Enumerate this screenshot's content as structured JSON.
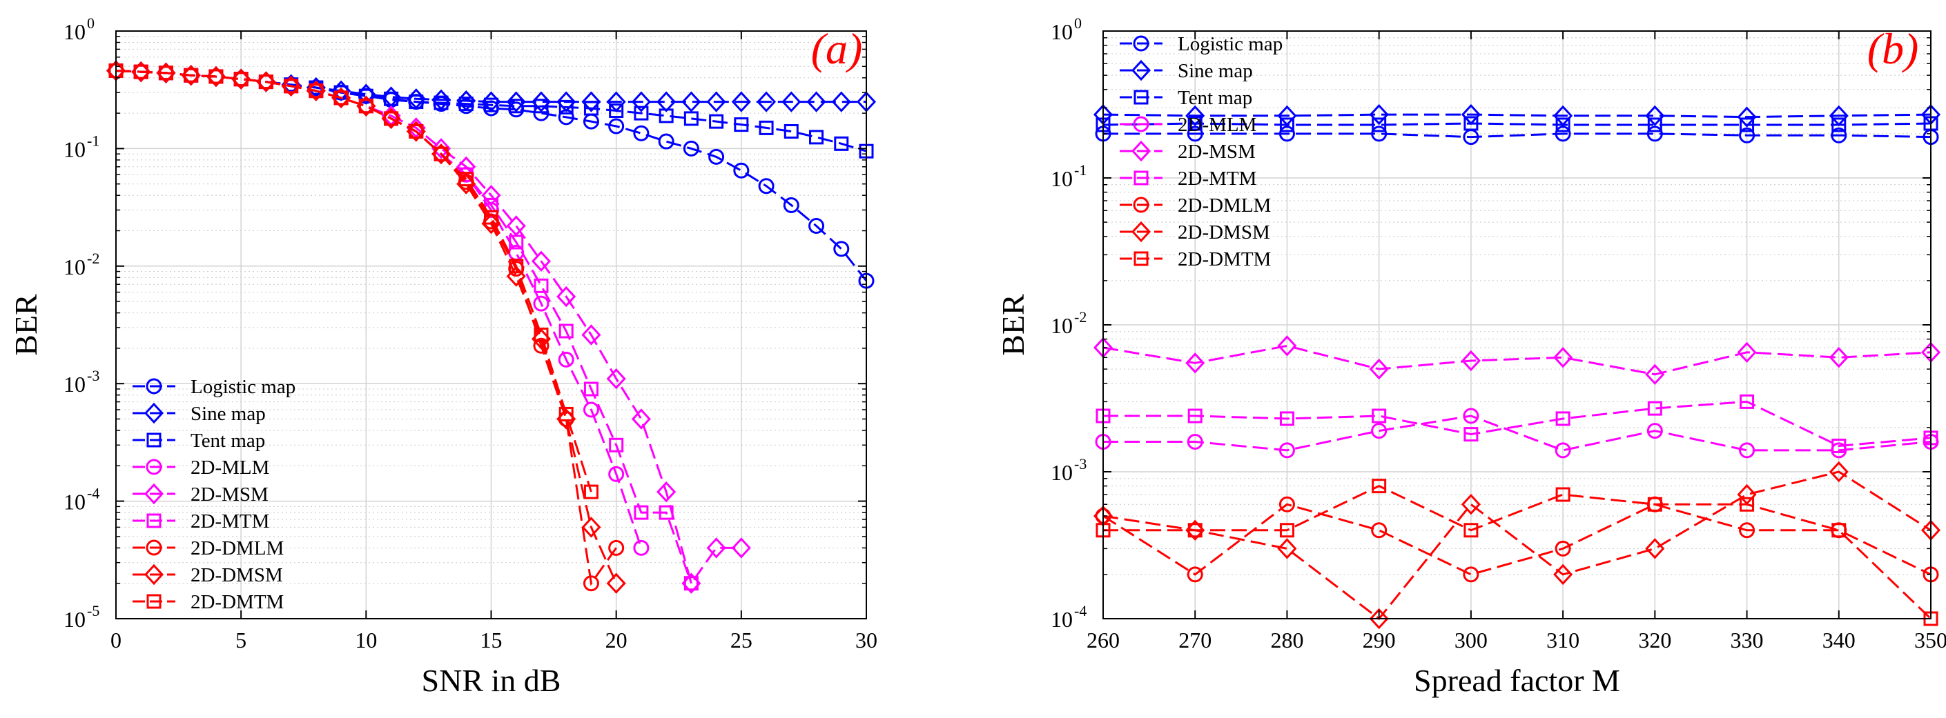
{
  "chart_data": [
    {
      "type": "line",
      "panel_label": "(a)",
      "xlabel": "SNR in dB",
      "ylabel": "BER",
      "x_scale": "linear",
      "y_scale": "log",
      "xlim": [
        0,
        30
      ],
      "ylim": [
        1e-05,
        1
      ],
      "x_ticks": [
        0,
        5,
        10,
        15,
        20,
        25,
        30
      ],
      "x_tick_labels": [
        "0",
        "5",
        "10",
        "15",
        "20",
        "25",
        "30"
      ],
      "y_tick_bases": [
        "10",
        "10",
        "10",
        "10",
        "10",
        "10"
      ],
      "y_tick_exponents": [
        "-5",
        "-4",
        "-3",
        "-2",
        "-1",
        "0"
      ],
      "grid": true,
      "legend_position": "bottom-left",
      "series": [
        {
          "name": "Logistic map",
          "color": "#0000ff",
          "marker": "circle",
          "x": [
            0,
            1,
            2,
            3,
            4,
            5,
            6,
            7,
            8,
            9,
            10,
            11,
            12,
            13,
            14,
            15,
            16,
            17,
            18,
            19,
            20,
            21,
            22,
            23,
            24,
            25,
            26,
            27,
            28,
            29,
            30
          ],
          "y": [
            0.46,
            0.45,
            0.44,
            0.42,
            0.41,
            0.39,
            0.37,
            0.35,
            0.33,
            0.3,
            0.28,
            0.26,
            0.25,
            0.24,
            0.23,
            0.22,
            0.215,
            0.2,
            0.185,
            0.17,
            0.155,
            0.135,
            0.115,
            0.1,
            0.085,
            0.065,
            0.048,
            0.033,
            0.022,
            0.014,
            0.0075
          ]
        },
        {
          "name": "Sine map",
          "color": "#0000ff",
          "marker": "diamond",
          "x": [
            0,
            1,
            2,
            3,
            4,
            5,
            6,
            7,
            8,
            9,
            10,
            11,
            12,
            13,
            14,
            15,
            16,
            17,
            18,
            19,
            20,
            21,
            22,
            23,
            24,
            25,
            26,
            27,
            28,
            29,
            30
          ],
          "y": [
            0.46,
            0.45,
            0.44,
            0.42,
            0.41,
            0.39,
            0.37,
            0.35,
            0.33,
            0.31,
            0.29,
            0.275,
            0.265,
            0.26,
            0.255,
            0.25,
            0.25,
            0.25,
            0.25,
            0.25,
            0.25,
            0.25,
            0.25,
            0.25,
            0.25,
            0.25,
            0.25,
            0.25,
            0.25,
            0.25,
            0.25
          ]
        },
        {
          "name": "Tent map",
          "color": "#0000ff",
          "marker": "square",
          "x": [
            0,
            1,
            2,
            3,
            4,
            5,
            6,
            7,
            8,
            9,
            10,
            11,
            12,
            13,
            14,
            15,
            16,
            17,
            18,
            19,
            20,
            21,
            22,
            23,
            24,
            25,
            26,
            27,
            28,
            29,
            30
          ],
          "y": [
            0.46,
            0.45,
            0.44,
            0.42,
            0.41,
            0.39,
            0.37,
            0.35,
            0.33,
            0.3,
            0.28,
            0.265,
            0.25,
            0.245,
            0.24,
            0.235,
            0.23,
            0.23,
            0.225,
            0.22,
            0.21,
            0.2,
            0.19,
            0.18,
            0.17,
            0.16,
            0.15,
            0.14,
            0.125,
            0.11,
            0.095
          ]
        },
        {
          "name": "2D-MLM",
          "color": "#ff00ff",
          "marker": "circle",
          "x": [
            0,
            1,
            2,
            3,
            4,
            5,
            6,
            7,
            8,
            9,
            10,
            11,
            12,
            13,
            14,
            15,
            16,
            17,
            18,
            19,
            20,
            21
          ],
          "y": [
            0.46,
            0.45,
            0.44,
            0.42,
            0.41,
            0.39,
            0.37,
            0.34,
            0.31,
            0.27,
            0.23,
            0.18,
            0.14,
            0.09,
            0.06,
            0.03,
            0.013,
            0.0048,
            0.0016,
            0.0006,
            0.00017,
            4e-05
          ]
        },
        {
          "name": "2D-MSM",
          "color": "#ff00ff",
          "marker": "diamond",
          "x": [
            0,
            1,
            2,
            3,
            4,
            5,
            6,
            7,
            8,
            9,
            10,
            11,
            12,
            13,
            14,
            15,
            16,
            17,
            18,
            19,
            20,
            21,
            22,
            23,
            24,
            25
          ],
          "y": [
            0.46,
            0.45,
            0.44,
            0.42,
            0.41,
            0.39,
            0.37,
            0.34,
            0.31,
            0.27,
            0.23,
            0.19,
            0.15,
            0.1,
            0.07,
            0.04,
            0.022,
            0.011,
            0.0055,
            0.0026,
            0.0011,
            0.0005,
            0.00012,
            2e-05,
            4e-05,
            4e-05
          ]
        },
        {
          "name": "2D-MTM",
          "color": "#ff00ff",
          "marker": "square",
          "x": [
            0,
            1,
            2,
            3,
            4,
            5,
            6,
            7,
            8,
            9,
            10,
            11,
            12,
            13,
            14,
            15,
            16,
            17,
            18,
            19,
            20,
            21,
            22,
            23
          ],
          "y": [
            0.46,
            0.45,
            0.44,
            0.42,
            0.41,
            0.39,
            0.37,
            0.34,
            0.31,
            0.27,
            0.23,
            0.18,
            0.14,
            0.09,
            0.06,
            0.033,
            0.016,
            0.0068,
            0.0028,
            0.0009,
            0.0003,
            8e-05,
            8e-05,
            2e-05
          ]
        },
        {
          "name": "2D-DMLM",
          "color": "#ff0000",
          "marker": "circle",
          "x": [
            0,
            1,
            2,
            3,
            4,
            5,
            6,
            7,
            8,
            9,
            10,
            11,
            12,
            13,
            14,
            15,
            16,
            17,
            18,
            19,
            20
          ],
          "y": [
            0.46,
            0.45,
            0.44,
            0.42,
            0.41,
            0.39,
            0.37,
            0.34,
            0.31,
            0.27,
            0.23,
            0.18,
            0.14,
            0.09,
            0.052,
            0.024,
            0.0095,
            0.0021,
            0.0005,
            2e-05,
            4e-05
          ]
        },
        {
          "name": "2D-DMSM",
          "color": "#ff0000",
          "marker": "diamond",
          "x": [
            0,
            1,
            2,
            3,
            4,
            5,
            6,
            7,
            8,
            9,
            10,
            11,
            12,
            13,
            14,
            15,
            16,
            17,
            18,
            19,
            20
          ],
          "y": [
            0.46,
            0.45,
            0.44,
            0.42,
            0.41,
            0.39,
            0.37,
            0.34,
            0.31,
            0.27,
            0.23,
            0.18,
            0.14,
            0.09,
            0.05,
            0.023,
            0.0082,
            0.0024,
            0.0005,
            6e-05,
            2e-05
          ]
        },
        {
          "name": "2D-DMTM",
          "color": "#ff0000",
          "marker": "square",
          "x": [
            0,
            1,
            2,
            3,
            4,
            5,
            6,
            7,
            8,
            9,
            10,
            11,
            12,
            13,
            14,
            15,
            16,
            17,
            18,
            19
          ],
          "y": [
            0.46,
            0.45,
            0.44,
            0.42,
            0.41,
            0.39,
            0.37,
            0.34,
            0.31,
            0.27,
            0.23,
            0.18,
            0.14,
            0.09,
            0.055,
            0.026,
            0.01,
            0.0026,
            0.00055,
            0.00012
          ]
        }
      ]
    },
    {
      "type": "line",
      "panel_label": "(b)",
      "xlabel": "Spread factor M",
      "ylabel": "BER",
      "x_scale": "linear",
      "y_scale": "log",
      "xlim": [
        260,
        350
      ],
      "ylim": [
        0.0001,
        1
      ],
      "x_ticks": [
        260,
        270,
        280,
        290,
        300,
        310,
        320,
        330,
        340,
        350
      ],
      "x_tick_labels": [
        "260",
        "270",
        "280",
        "290",
        "300",
        "310",
        "320",
        "330",
        "340",
        "350"
      ],
      "y_tick_bases": [
        "10",
        "10",
        "10",
        "10",
        "10"
      ],
      "y_tick_exponents": [
        "-4",
        "-3",
        "-2",
        "-1",
        "0"
      ],
      "grid": true,
      "legend_position": "top-left",
      "series": [
        {
          "name": "Logistic map",
          "color": "#0000ff",
          "marker": "circle",
          "x": [
            260,
            270,
            280,
            290,
            300,
            310,
            320,
            330,
            340,
            350
          ],
          "y": [
            0.2,
            0.2,
            0.2,
            0.2,
            0.19,
            0.2,
            0.2,
            0.195,
            0.195,
            0.19
          ]
        },
        {
          "name": "Sine map",
          "color": "#0000ff",
          "marker": "diamond",
          "x": [
            260,
            270,
            280,
            290,
            300,
            310,
            320,
            330,
            340,
            350
          ],
          "y": [
            0.27,
            0.265,
            0.265,
            0.27,
            0.27,
            0.265,
            0.265,
            0.26,
            0.265,
            0.27
          ]
        },
        {
          "name": "Tent map",
          "color": "#0000ff",
          "marker": "square",
          "x": [
            260,
            270,
            280,
            290,
            300,
            310,
            320,
            330,
            340,
            350
          ],
          "y": [
            0.23,
            0.235,
            0.23,
            0.23,
            0.235,
            0.23,
            0.23,
            0.23,
            0.23,
            0.235
          ]
        },
        {
          "name": "2D-MLM",
          "color": "#ff00ff",
          "marker": "circle",
          "x": [
            260,
            270,
            280,
            290,
            300,
            310,
            320,
            330,
            340,
            350
          ],
          "y": [
            0.0016,
            0.0016,
            0.0014,
            0.0019,
            0.0024,
            0.0014,
            0.0019,
            0.0014,
            0.0014,
            0.0016
          ]
        },
        {
          "name": "2D-MSM",
          "color": "#ff00ff",
          "marker": "diamond",
          "x": [
            260,
            270,
            280,
            290,
            300,
            310,
            320,
            330,
            340,
            350
          ],
          "y": [
            0.007,
            0.0055,
            0.0072,
            0.005,
            0.0057,
            0.006,
            0.0046,
            0.0065,
            0.006,
            0.0065
          ]
        },
        {
          "name": "2D-MTM",
          "color": "#ff00ff",
          "marker": "square",
          "x": [
            260,
            270,
            280,
            290,
            300,
            310,
            320,
            330,
            340,
            350
          ],
          "y": [
            0.0024,
            0.0024,
            0.0023,
            0.0024,
            0.0018,
            0.0023,
            0.0027,
            0.003,
            0.0015,
            0.0017
          ]
        },
        {
          "name": "2D-DMLM",
          "color": "#ff0000",
          "marker": "circle",
          "x": [
            260,
            270,
            280,
            290,
            300,
            310,
            320,
            330,
            340,
            350
          ],
          "y": [
            0.0005,
            0.0002,
            0.0006,
            0.0004,
            0.0002,
            0.0003,
            0.0006,
            0.0004,
            0.0004,
            0.0002
          ]
        },
        {
          "name": "2D-DMSM",
          "color": "#ff0000",
          "marker": "diamond",
          "x": [
            260,
            270,
            280,
            290,
            300,
            310,
            320,
            330,
            340,
            350
          ],
          "y": [
            0.0005,
            0.0004,
            0.0003,
            0.0001,
            0.0006,
            0.0002,
            0.0003,
            0.0007,
            0.001,
            0.0004
          ]
        },
        {
          "name": "2D-DMTM",
          "color": "#ff0000",
          "marker": "square",
          "x": [
            260,
            270,
            280,
            290,
            300,
            310,
            320,
            330,
            340,
            350
          ],
          "y": [
            0.0004,
            0.0004,
            0.0004,
            0.0008,
            0.0004,
            0.0007,
            0.0006,
            0.0006,
            0.0004,
            0.0001
          ]
        }
      ]
    }
  ]
}
